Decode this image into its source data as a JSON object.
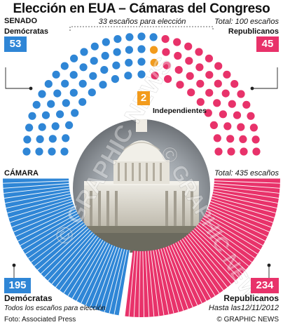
{
  "title": "Elección en EUA – Cámaras del Congreso",
  "colors": {
    "dem": "#2f86d6",
    "rep": "#e8326a",
    "ind": "#f29b1c"
  },
  "senate": {
    "section_label": "SENADO",
    "seats_note": "33 escaños para elección",
    "total_note": "Total: 100 escaños",
    "dem_label": "Demócratas",
    "dem_count": "53",
    "rep_label": "Republicanos",
    "rep_count": "45",
    "ind_count": "2",
    "ind_label": "Independientes"
  },
  "house": {
    "section_label": "CÁMARA",
    "total_note": "Total: 435 escaños",
    "dem_label": "Demócratas",
    "dem_count": "195",
    "rep_label": "Republicanos",
    "rep_count": "234",
    "footnote_left": "Todos los escaños para elección",
    "footnote_right": "Hasta las12/11/2012"
  },
  "source": "Foto: Associated Press",
  "credit": "© GRAPHIC NEWS",
  "watermark": "© GRAPHIC NEWS",
  "chart_data": [
    {
      "type": "pie",
      "title": "SENADO",
      "categories": [
        "Demócratas",
        "Independientes",
        "Republicanos"
      ],
      "values": [
        53,
        2,
        45
      ],
      "total": 100
    },
    {
      "type": "pie",
      "title": "CÁMARA",
      "categories": [
        "Demócratas",
        "Republicanos"
      ],
      "values": [
        195,
        234
      ],
      "total": 435
    }
  ]
}
